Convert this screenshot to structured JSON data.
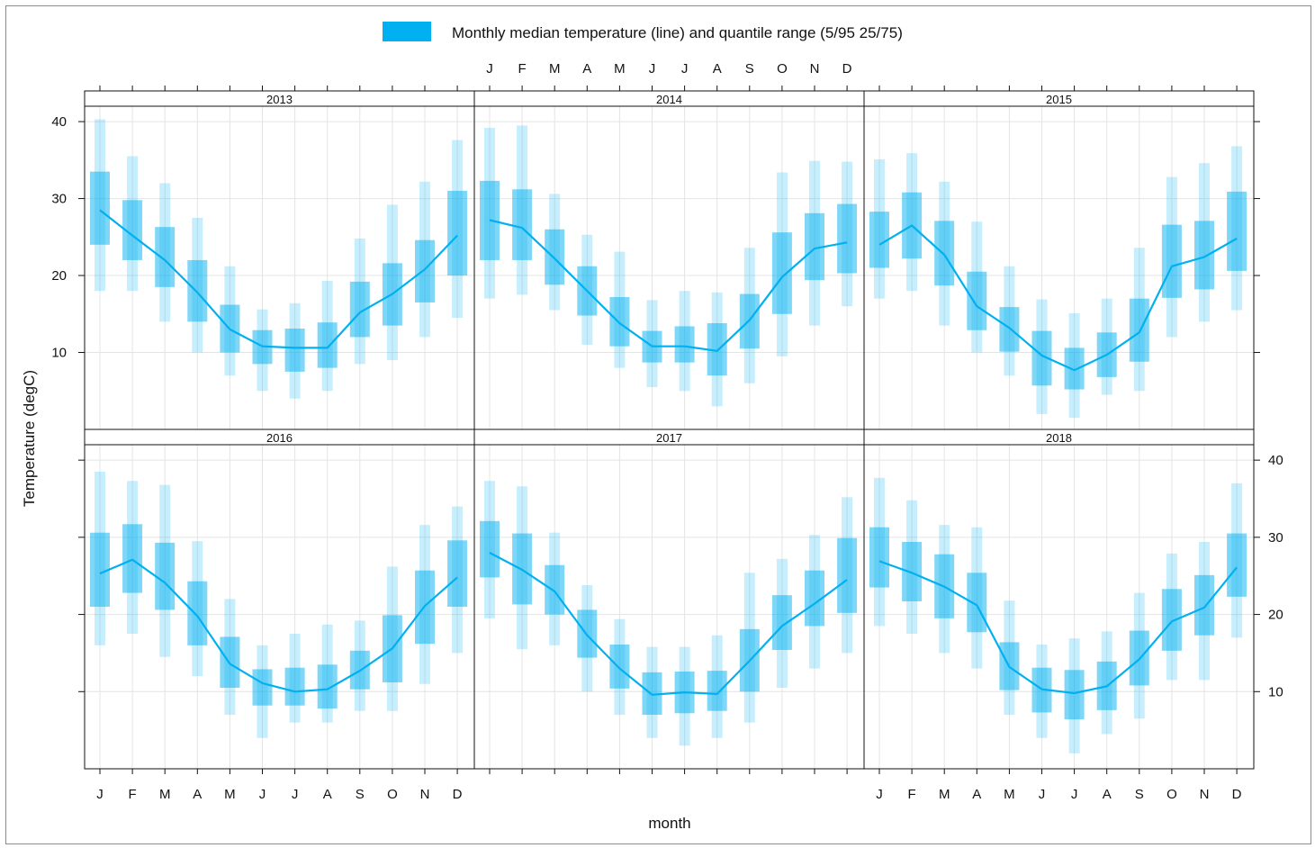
{
  "chart_data": {
    "type": "box",
    "legend": {
      "label": "Monthly median temperature (line) and quantile range (5/95 25/75)",
      "color": "#00b0f0",
      "placement": "top"
    },
    "xlabel": "month",
    "ylabel": "Temperature (degC)",
    "ylim": [
      0,
      42
    ],
    "yticks": [
      10,
      20,
      30,
      40
    ],
    "yticks_labels": [
      "10",
      "20",
      "30",
      "40"
    ],
    "categories": [
      "J",
      "F",
      "M",
      "A",
      "M",
      "J",
      "J",
      "A",
      "S",
      "O",
      "N",
      "D"
    ],
    "grid": true,
    "layout": "3 columns x 2 rows",
    "quantiles": [
      "5",
      "25",
      "50",
      "75",
      "95"
    ],
    "panels": [
      {
        "year": "2013",
        "q5": [
          18,
          18,
          14,
          10,
          7,
          5,
          4,
          5,
          8.5,
          9,
          12,
          14.5
        ],
        "q25": [
          24,
          22,
          18.5,
          14,
          10,
          8.5,
          7.5,
          8,
          12,
          13.5,
          16.5,
          20
        ],
        "median": [
          28.5,
          25.2,
          22,
          17.8,
          13,
          10.8,
          10.6,
          10.6,
          15.2,
          17.6,
          20.8,
          25.2
        ],
        "q75": [
          33.5,
          29.8,
          26.3,
          22,
          16.2,
          12.9,
          13.1,
          13.9,
          19.2,
          21.6,
          24.6,
          31
        ],
        "q95": [
          40.3,
          35.5,
          32,
          27.5,
          21.2,
          15.6,
          16.4,
          19.3,
          24.8,
          29.2,
          32.2,
          37.6
        ]
      },
      {
        "year": "2014",
        "q5": [
          17,
          17.5,
          15.5,
          11,
          8,
          5.5,
          5,
          3,
          6,
          9.5,
          13.5,
          16
        ],
        "q25": [
          22,
          22,
          18.8,
          14.8,
          10.8,
          8.7,
          8.7,
          7,
          10.5,
          15,
          19.4,
          20.3
        ],
        "median": [
          27.2,
          26.2,
          22.2,
          18,
          13.8,
          10.8,
          10.8,
          10.2,
          14.2,
          19.8,
          23.5,
          24.3
        ],
        "q75": [
          32.3,
          31.2,
          26,
          21.2,
          17.2,
          12.8,
          13.4,
          13.8,
          17.6,
          25.6,
          28.1,
          29.3
        ],
        "q95": [
          39.2,
          39.5,
          30.6,
          25.3,
          23.1,
          16.8,
          18,
          17.8,
          23.6,
          33.4,
          34.9,
          34.8
        ]
      },
      {
        "year": "2015",
        "q5": [
          17,
          18,
          13.5,
          10,
          7,
          2,
          1.5,
          4.5,
          5,
          12,
          14,
          15.5
        ],
        "q25": [
          21,
          22.2,
          18.7,
          12.9,
          10.1,
          5.7,
          5.2,
          6.8,
          8.8,
          17.1,
          18.2,
          20.6
        ],
        "median": [
          24,
          26.5,
          22.7,
          16,
          13.2,
          9.6,
          7.7,
          9.7,
          12.6,
          21.2,
          22.4,
          24.8
        ],
        "q75": [
          28.3,
          30.8,
          27.1,
          20.5,
          15.9,
          12.8,
          10.6,
          12.6,
          17,
          26.6,
          27.1,
          30.9
        ],
        "q95": [
          35.1,
          35.9,
          32.2,
          27,
          21.2,
          16.9,
          15.1,
          17,
          23.6,
          32.8,
          34.6,
          36.8
        ]
      },
      {
        "year": "2016",
        "q5": [
          16,
          17.5,
          14.5,
          12,
          7,
          4,
          6,
          6,
          7.5,
          7.5,
          11,
          15
        ],
        "q25": [
          21,
          22.8,
          20.6,
          16,
          10.5,
          8.2,
          8.2,
          7.8,
          10.3,
          11.2,
          16.2,
          21
        ],
        "median": [
          25.3,
          27.1,
          24.1,
          19.8,
          13.6,
          11.1,
          10,
          10.3,
          12.7,
          15.6,
          21.1,
          24.8
        ],
        "q75": [
          30.6,
          31.7,
          29.3,
          24.3,
          17.1,
          12.9,
          13.1,
          13.5,
          15.3,
          19.9,
          25.7,
          29.6
        ],
        "q95": [
          38.5,
          37.3,
          36.8,
          29.5,
          22,
          16,
          17.5,
          18.7,
          19.2,
          26.2,
          31.6,
          34
        ],
        "ylabel_side": "left"
      },
      {
        "year": "2017",
        "q5": [
          19.5,
          15.5,
          16,
          10,
          7,
          4,
          3,
          4,
          6,
          10.5,
          13,
          15
        ],
        "q25": [
          24.8,
          21.3,
          20,
          14.4,
          10.4,
          7,
          7.2,
          7.5,
          10,
          15.4,
          18.5,
          20.2
        ],
        "median": [
          28,
          25.8,
          23,
          17.3,
          13,
          9.6,
          9.9,
          9.7,
          14,
          18.5,
          21.4,
          24.5
        ],
        "q75": [
          32.1,
          30.5,
          26.4,
          20.6,
          16.1,
          12.5,
          12.6,
          12.7,
          18.1,
          22.5,
          25.7,
          29.9
        ],
        "q95": [
          37.3,
          36.6,
          30.6,
          23.8,
          19.4,
          15.8,
          15.8,
          17.3,
          25.4,
          27.2,
          30.3,
          35.2
        ]
      },
      {
        "year": "2018",
        "q5": [
          18.5,
          17.5,
          15,
          13,
          7,
          4,
          2,
          4.5,
          6.5,
          11.5,
          11.5,
          17
        ],
        "q25": [
          23.5,
          21.7,
          19.5,
          17.7,
          10.2,
          7.3,
          6.4,
          7.6,
          10.8,
          15.3,
          17.3,
          22.3
        ],
        "median": [
          26.9,
          25.4,
          23.6,
          21.2,
          13.2,
          10.3,
          9.8,
          10.7,
          14.2,
          19.1,
          20.9,
          26.1
        ],
        "q75": [
          31.3,
          29.4,
          27.8,
          25.4,
          16.4,
          13.1,
          12.8,
          13.9,
          17.9,
          23.3,
          25.1,
          30.5
        ],
        "q95": [
          37.7,
          34.8,
          31.6,
          31.3,
          21.8,
          16.1,
          16.9,
          17.8,
          22.8,
          27.9,
          29.4,
          37
        ]
      }
    ]
  }
}
